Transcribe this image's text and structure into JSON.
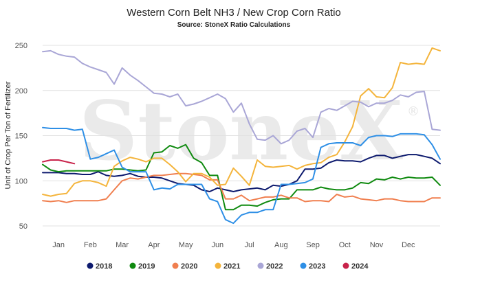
{
  "chart_data": {
    "type": "line",
    "title": "Western Corn Belt NH3 / New Crop Corn Ratio",
    "subtitle": "Source: StoneX Ratio Calculations",
    "ylabel": "Unit of Crop Per Ton of Fertilizer",
    "xlabel": "",
    "watermark": "StoneX",
    "watermark_mark": "®",
    "ylim": [
      50,
      250
    ],
    "yticks": [
      "50",
      "100",
      "150",
      "200",
      "250"
    ],
    "ytick_values": [
      50,
      100,
      150,
      200,
      250
    ],
    "xlim": [
      0,
      50
    ],
    "months": [
      "Jan",
      "Feb",
      "Mar",
      "Apr",
      "May",
      "Jun",
      "Jul",
      "Aug",
      "Sep",
      "Oct",
      "Nov",
      "Dec"
    ],
    "month_positions": [
      2,
      6,
      10,
      14,
      18,
      22,
      26,
      30,
      34,
      38,
      42,
      46
    ],
    "grid": "horizontal",
    "legend_position": "bottom",
    "series": [
      {
        "name": "2018",
        "color": "#0d1a6e",
        "values": [
          [
            0,
            109
          ],
          [
            1,
            109
          ],
          [
            2,
            109
          ],
          [
            3,
            108
          ],
          [
            4,
            108
          ],
          [
            5,
            107
          ],
          [
            6,
            107
          ],
          [
            7,
            110
          ],
          [
            8,
            106
          ],
          [
            9,
            105
          ],
          [
            10,
            106
          ],
          [
            11,
            108
          ],
          [
            12,
            105
          ],
          [
            13,
            104
          ],
          [
            14,
            104
          ],
          [
            15,
            103
          ],
          [
            16,
            100
          ],
          [
            17,
            97
          ],
          [
            18,
            96
          ],
          [
            19,
            95
          ],
          [
            20,
            90
          ],
          [
            21,
            88
          ],
          [
            22,
            92
          ],
          [
            23,
            90
          ],
          [
            24,
            88
          ],
          [
            25,
            90
          ],
          [
            26,
            91
          ],
          [
            27,
            92
          ],
          [
            28,
            90
          ],
          [
            29,
            95
          ],
          [
            30,
            94
          ],
          [
            31,
            96
          ],
          [
            32,
            100
          ],
          [
            33,
            113
          ],
          [
            34,
            113
          ],
          [
            35,
            114
          ],
          [
            36,
            120
          ],
          [
            37,
            123
          ],
          [
            38,
            122
          ],
          [
            39,
            122
          ],
          [
            40,
            121
          ],
          [
            41,
            125
          ],
          [
            42,
            128
          ],
          [
            43,
            128
          ],
          [
            44,
            125
          ],
          [
            45,
            127
          ],
          [
            46,
            129
          ],
          [
            47,
            129
          ],
          [
            48,
            127
          ],
          [
            49,
            125
          ],
          [
            50,
            119
          ]
        ]
      },
      {
        "name": "2019",
        "color": "#0f8a0f",
        "values": [
          [
            0,
            118
          ],
          [
            1,
            112
          ],
          [
            2,
            110
          ],
          [
            3,
            111
          ],
          [
            4,
            111
          ],
          [
            5,
            111
          ],
          [
            6,
            111
          ],
          [
            7,
            111
          ],
          [
            8,
            111
          ],
          [
            9,
            113
          ],
          [
            10,
            113
          ],
          [
            11,
            112
          ],
          [
            12,
            111
          ],
          [
            13,
            112
          ],
          [
            14,
            131
          ],
          [
            15,
            132
          ],
          [
            16,
            139
          ],
          [
            17,
            136
          ],
          [
            18,
            140
          ],
          [
            19,
            125
          ],
          [
            20,
            120
          ],
          [
            21,
            106
          ],
          [
            22,
            106
          ],
          [
            23,
            68
          ],
          [
            24,
            68
          ],
          [
            25,
            73
          ],
          [
            26,
            73
          ],
          [
            27,
            72
          ],
          [
            28,
            76
          ],
          [
            29,
            79
          ],
          [
            30,
            80
          ],
          [
            31,
            80
          ],
          [
            32,
            90
          ],
          [
            33,
            90
          ],
          [
            34,
            90
          ],
          [
            35,
            93
          ],
          [
            36,
            91
          ],
          [
            37,
            90
          ],
          [
            38,
            90
          ],
          [
            39,
            92
          ],
          [
            40,
            98
          ],
          [
            41,
            97
          ],
          [
            42,
            102
          ],
          [
            43,
            101
          ],
          [
            44,
            104
          ],
          [
            45,
            102
          ],
          [
            46,
            104
          ],
          [
            47,
            103
          ],
          [
            48,
            103
          ],
          [
            49,
            104
          ],
          [
            50,
            95
          ]
        ]
      },
      {
        "name": "2020",
        "color": "#f07f4f",
        "values": [
          [
            0,
            78
          ],
          [
            1,
            77
          ],
          [
            2,
            78
          ],
          [
            3,
            76
          ],
          [
            4,
            78
          ],
          [
            5,
            78
          ],
          [
            6,
            78
          ],
          [
            7,
            78
          ],
          [
            8,
            80
          ],
          [
            9,
            90
          ],
          [
            10,
            100
          ],
          [
            11,
            103
          ],
          [
            12,
            102
          ],
          [
            13,
            104
          ],
          [
            14,
            106
          ],
          [
            15,
            106
          ],
          [
            16,
            107
          ],
          [
            17,
            108
          ],
          [
            18,
            108
          ],
          [
            19,
            107
          ],
          [
            20,
            106
          ],
          [
            21,
            101
          ],
          [
            22,
            101
          ],
          [
            23,
            80
          ],
          [
            24,
            80
          ],
          [
            25,
            84
          ],
          [
            26,
            78
          ],
          [
            27,
            80
          ],
          [
            28,
            82
          ],
          [
            29,
            82
          ],
          [
            30,
            84
          ],
          [
            31,
            81
          ],
          [
            32,
            81
          ],
          [
            33,
            77
          ],
          [
            34,
            78
          ],
          [
            35,
            78
          ],
          [
            36,
            77
          ],
          [
            37,
            85
          ],
          [
            38,
            82
          ],
          [
            39,
            83
          ],
          [
            40,
            80
          ],
          [
            41,
            79
          ],
          [
            42,
            78
          ],
          [
            43,
            80
          ],
          [
            44,
            80
          ],
          [
            45,
            78
          ],
          [
            46,
            77
          ],
          [
            47,
            77
          ],
          [
            48,
            77
          ],
          [
            49,
            81
          ],
          [
            50,
            81
          ]
        ]
      },
      {
        "name": "2021",
        "color": "#f4b43b",
        "values": [
          [
            0,
            85
          ],
          [
            1,
            83
          ],
          [
            2,
            85
          ],
          [
            3,
            86
          ],
          [
            4,
            97
          ],
          [
            5,
            100
          ],
          [
            6,
            100
          ],
          [
            7,
            98
          ],
          [
            8,
            94
          ],
          [
            9,
            116
          ],
          [
            10,
            122
          ],
          [
            11,
            126
          ],
          [
            12,
            124
          ],
          [
            13,
            121
          ],
          [
            14,
            125
          ],
          [
            15,
            125
          ],
          [
            16,
            118
          ],
          [
            17,
            110
          ],
          [
            18,
            99
          ],
          [
            19,
            108
          ],
          [
            20,
            108
          ],
          [
            21,
            104
          ],
          [
            22,
            95
          ],
          [
            23,
            96
          ],
          [
            24,
            114
          ],
          [
            25,
            105
          ],
          [
            26,
            95
          ],
          [
            27,
            123
          ],
          [
            28,
            116
          ],
          [
            29,
            115
          ],
          [
            30,
            116
          ],
          [
            31,
            117
          ],
          [
            32,
            113
          ],
          [
            33,
            117
          ],
          [
            34,
            119
          ],
          [
            35,
            120
          ],
          [
            36,
            126
          ],
          [
            37,
            129
          ],
          [
            38,
            143
          ],
          [
            39,
            160
          ],
          [
            40,
            194
          ],
          [
            41,
            202
          ],
          [
            42,
            193
          ],
          [
            43,
            192
          ],
          [
            44,
            203
          ],
          [
            45,
            231
          ],
          [
            46,
            229
          ],
          [
            47,
            230
          ],
          [
            48,
            229
          ],
          [
            49,
            247
          ],
          [
            50,
            244
          ]
        ]
      },
      {
        "name": "2022",
        "color": "#a9a6d6",
        "values": [
          [
            0,
            243
          ],
          [
            1,
            244
          ],
          [
            2,
            240
          ],
          [
            3,
            238
          ],
          [
            4,
            237
          ],
          [
            5,
            230
          ],
          [
            6,
            226
          ],
          [
            7,
            223
          ],
          [
            8,
            220
          ],
          [
            9,
            207
          ],
          [
            10,
            225
          ],
          [
            11,
            217
          ],
          [
            12,
            211
          ],
          [
            13,
            204
          ],
          [
            14,
            197
          ],
          [
            15,
            196
          ],
          [
            16,
            193
          ],
          [
            17,
            196
          ],
          [
            18,
            183
          ],
          [
            19,
            185
          ],
          [
            20,
            188
          ],
          [
            21,
            192
          ],
          [
            22,
            196
          ],
          [
            23,
            191
          ],
          [
            24,
            176
          ],
          [
            25,
            186
          ],
          [
            26,
            163
          ],
          [
            27,
            146
          ],
          [
            28,
            145
          ],
          [
            29,
            150
          ],
          [
            30,
            141
          ],
          [
            31,
            145
          ],
          [
            32,
            155
          ],
          [
            33,
            158
          ],
          [
            34,
            148
          ],
          [
            35,
            176
          ],
          [
            36,
            180
          ],
          [
            37,
            178
          ],
          [
            38,
            183
          ],
          [
            39,
            188
          ],
          [
            40,
            187
          ],
          [
            41,
            182
          ],
          [
            42,
            186
          ],
          [
            43,
            186
          ],
          [
            44,
            189
          ],
          [
            45,
            195
          ],
          [
            46,
            193
          ],
          [
            47,
            198
          ],
          [
            48,
            199
          ],
          [
            49,
            157
          ],
          [
            50,
            156
          ]
        ]
      },
      {
        "name": "2023",
        "color": "#2e8fe6",
        "values": [
          [
            0,
            159
          ],
          [
            1,
            158
          ],
          [
            2,
            158
          ],
          [
            3,
            158
          ],
          [
            4,
            156
          ],
          [
            5,
            157
          ],
          [
            6,
            124
          ],
          [
            7,
            126
          ],
          [
            8,
            130
          ],
          [
            9,
            134
          ],
          [
            10,
            115
          ],
          [
            11,
            110
          ],
          [
            12,
            110
          ],
          [
            13,
            110
          ],
          [
            14,
            90
          ],
          [
            15,
            92
          ],
          [
            16,
            91
          ],
          [
            17,
            96
          ],
          [
            18,
            96
          ],
          [
            19,
            96
          ],
          [
            20,
            96
          ],
          [
            21,
            80
          ],
          [
            22,
            77
          ],
          [
            23,
            57
          ],
          [
            24,
            53
          ],
          [
            25,
            62
          ],
          [
            26,
            65
          ],
          [
            27,
            65
          ],
          [
            28,
            68
          ],
          [
            29,
            68
          ],
          [
            30,
            96
          ],
          [
            31,
            96
          ],
          [
            32,
            97
          ],
          [
            33,
            98
          ],
          [
            34,
            102
          ],
          [
            35,
            137
          ],
          [
            36,
            141
          ],
          [
            37,
            142
          ],
          [
            38,
            142
          ],
          [
            39,
            142
          ],
          [
            40,
            139
          ],
          [
            41,
            148
          ],
          [
            42,
            150
          ],
          [
            43,
            150
          ],
          [
            44,
            149
          ],
          [
            45,
            152
          ],
          [
            46,
            152
          ],
          [
            47,
            152
          ],
          [
            48,
            151
          ],
          [
            49,
            140
          ],
          [
            50,
            124
          ]
        ]
      },
      {
        "name": "2024",
        "color": "#c8234a",
        "values": [
          [
            0,
            121
          ],
          [
            1,
            123
          ],
          [
            2,
            123
          ],
          [
            3,
            121
          ],
          [
            4,
            119
          ]
        ]
      }
    ]
  }
}
